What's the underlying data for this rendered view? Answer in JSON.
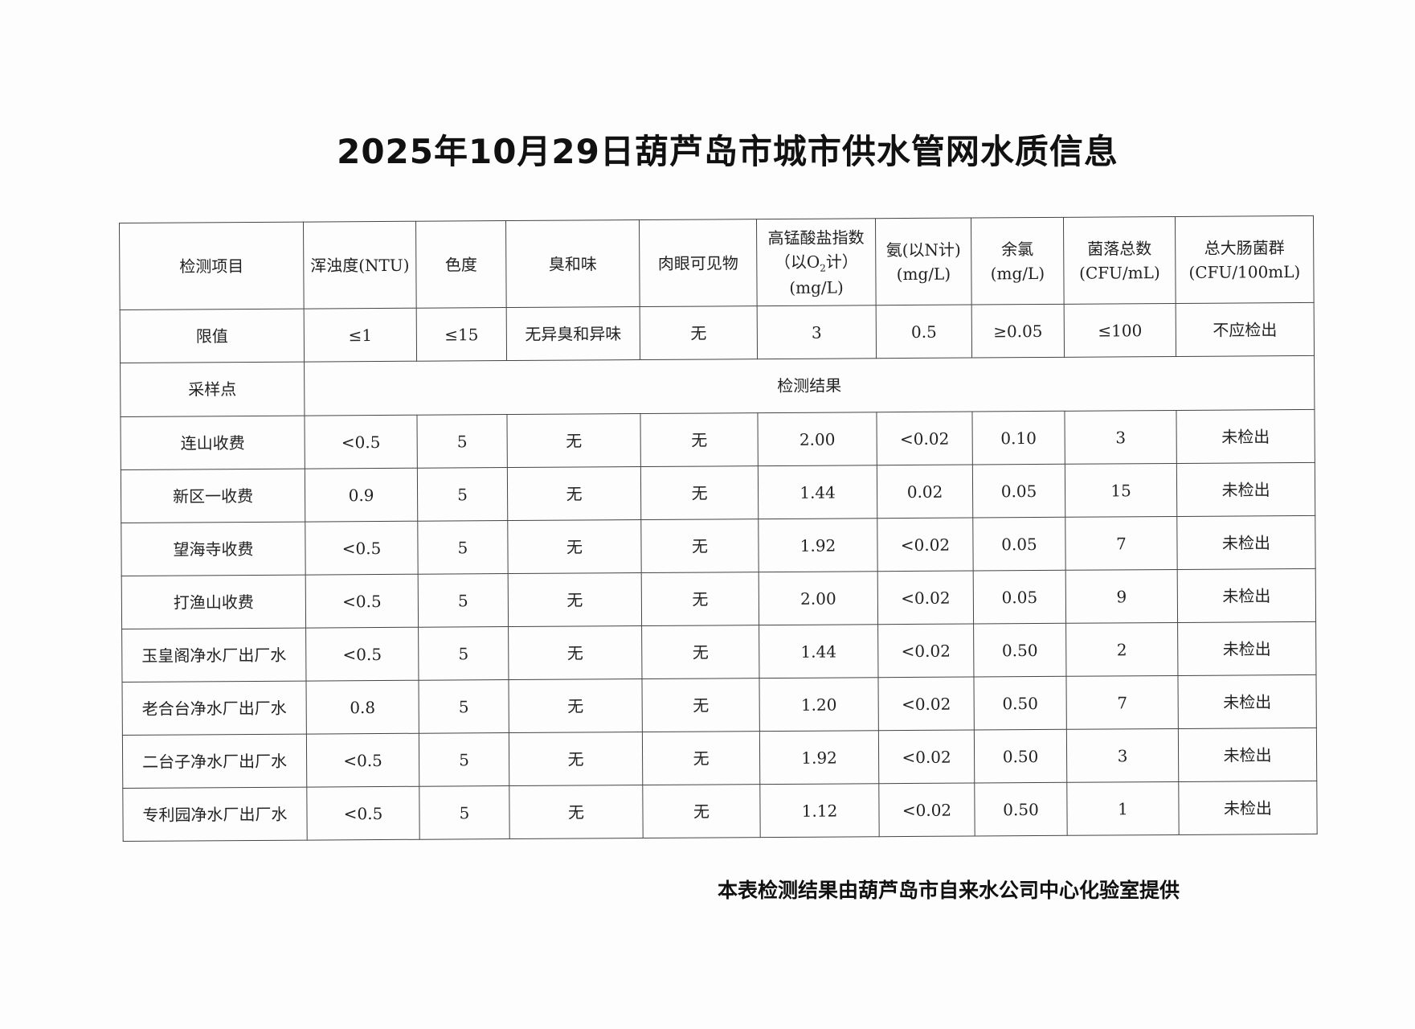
{
  "title": "2025年10月29日葫芦岛市城市供水管网水质信息",
  "table": {
    "header": {
      "item": "检测项目",
      "turbidity": "浑浊度(NTU)",
      "color": "色度",
      "odor": "臭和味",
      "visible": "肉眼可见物",
      "permanganate_1": "高锰酸盐指数",
      "permanganate_2a": "（以O",
      "permanganate_2sub": "2",
      "permanganate_2b": "计）",
      "permanganate_3": "(mg/L)",
      "ammonia_1": "氨(以N计)",
      "ammonia_2": "(mg/L)",
      "chlorine_1": "余氯",
      "chlorine_2": "(mg/L)",
      "colony_1": "菌落总数",
      "colony_2": "(CFU/mL)",
      "coliform_1": "总大肠菌群",
      "coliform_2": "(CFU/100mL)"
    },
    "limit_row": [
      "限值",
      "≤1",
      "≤15",
      "无异臭和异味",
      "无",
      "3",
      "0.5",
      "≥0.05",
      "≤100",
      "不应检出"
    ],
    "sampling_label": "采样点",
    "results_label": "检测结果",
    "rows": [
      [
        "连山收费",
        "<0.5",
        "5",
        "无",
        "无",
        "2.00",
        "<0.02",
        "0.10",
        "3",
        "未检出"
      ],
      [
        "新区一收费",
        "0.9",
        "5",
        "无",
        "无",
        "1.44",
        "0.02",
        "0.05",
        "15",
        "未检出"
      ],
      [
        "望海寺收费",
        "<0.5",
        "5",
        "无",
        "无",
        "1.92",
        "<0.02",
        "0.05",
        "7",
        "未检出"
      ],
      [
        "打渔山收费",
        "<0.5",
        "5",
        "无",
        "无",
        "2.00",
        "<0.02",
        "0.05",
        "9",
        "未检出"
      ],
      [
        "玉皇阁净水厂出厂水",
        "<0.5",
        "5",
        "无",
        "无",
        "1.44",
        "<0.02",
        "0.50",
        "2",
        "未检出"
      ],
      [
        "老合台净水厂出厂水",
        "0.8",
        "5",
        "无",
        "无",
        "1.20",
        "<0.02",
        "0.50",
        "7",
        "未检出"
      ],
      [
        "二台子净水厂出厂水",
        "<0.5",
        "5",
        "无",
        "无",
        "1.92",
        "<0.02",
        "0.50",
        "3",
        "未检出"
      ],
      [
        "专利园净水厂出厂水",
        "<0.5",
        "5",
        "无",
        "无",
        "1.12",
        "<0.02",
        "0.50",
        "1",
        "未检出"
      ]
    ]
  },
  "footer": "本表检测结果由葫芦岛市自来水公司中心化验室提供"
}
